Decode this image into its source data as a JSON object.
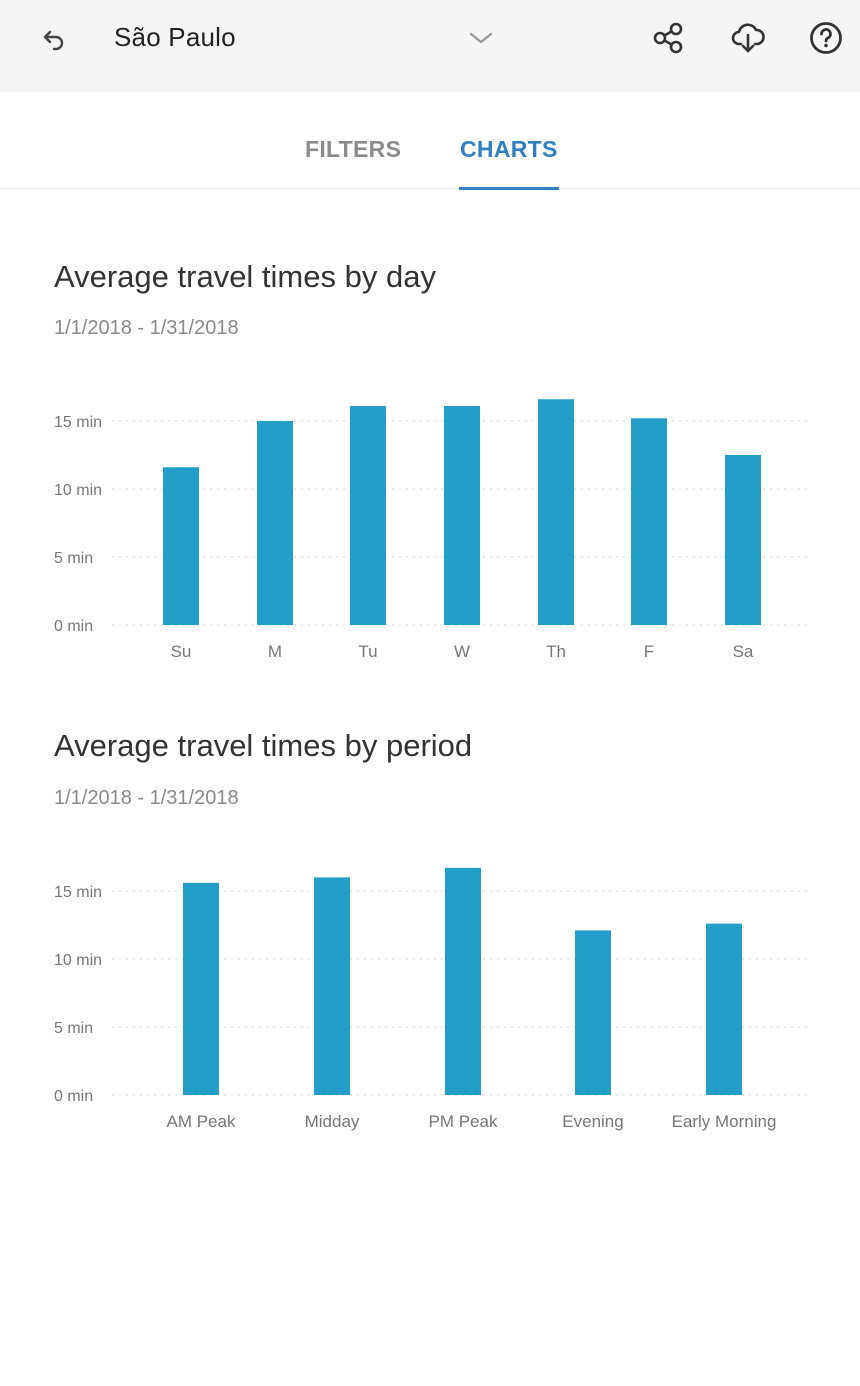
{
  "header": {
    "title": "São Paulo",
    "icons": [
      "undo-icon",
      "chevron-down-icon",
      "share-icon",
      "cloud-download-icon",
      "help-icon"
    ]
  },
  "tabs": [
    {
      "label": "FILTERS",
      "active": false
    },
    {
      "label": "CHARTS",
      "active": true
    }
  ],
  "colors": {
    "accent": "#2f7fc1",
    "bar": "#239ec8"
  },
  "charts": [
    {
      "title": "Average travel times by day",
      "date_range": "1/1/2018 - 1/31/2018"
    },
    {
      "title": "Average travel times by period",
      "date_range": "1/1/2018 - 1/31/2018"
    }
  ],
  "chart_data": [
    {
      "type": "bar",
      "title": "Average travel times by day",
      "subtitle": "1/1/2018 - 1/31/2018",
      "categories": [
        "Su",
        "M",
        "Tu",
        "W",
        "Th",
        "F",
        "Sa"
      ],
      "values": [
        11.6,
        15.0,
        16.1,
        16.1,
        16.6,
        15.2,
        12.5
      ],
      "ytick_labels": [
        "0 min",
        "5 min",
        "10 min",
        "15 min"
      ],
      "yticks": [
        0,
        5,
        10,
        15
      ],
      "ylim": [
        0,
        15
      ],
      "grid": true,
      "legend": "none"
    },
    {
      "type": "bar",
      "title": "Average travel times by period",
      "subtitle": "1/1/2018 - 1/31/2018",
      "categories": [
        "AM Peak",
        "Midday",
        "PM Peak",
        "Evening",
        "Early Morning"
      ],
      "values": [
        15.6,
        16.0,
        16.7,
        12.1,
        12.6
      ],
      "ytick_labels": [
        "0 min",
        "5 min",
        "10 min",
        "15 min"
      ],
      "yticks": [
        0,
        5,
        10,
        15
      ],
      "ylim": [
        0,
        15
      ],
      "grid": true,
      "legend": "none"
    }
  ]
}
